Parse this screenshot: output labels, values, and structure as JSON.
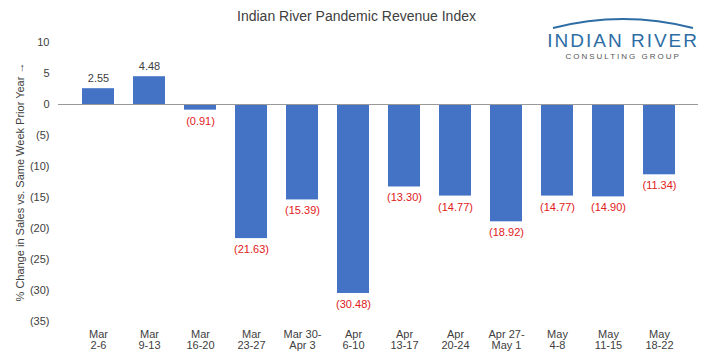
{
  "chart_data": {
    "type": "bar",
    "title": "Indian River Pandemic Revenue Index",
    "y_label": "% Change in Sales vs. Same Week Prior Year",
    "annotations": [
      "INDIAN RIVER",
      "CONSULTING GROUP"
    ],
    "categories": [
      "Mar 2-6",
      "Mar 9-13",
      "Mar 16-20",
      "Mar 23-27",
      "Mar 30-Apr 3",
      "Apr 6-10",
      "Apr 13-17",
      "Apr 20-24",
      "Apr 27-May 1",
      "May 4-8",
      "May 11-15",
      "May 18-22"
    ],
    "values": [
      2.55,
      4.48,
      -0.91,
      -21.63,
      -15.39,
      -30.48,
      -13.3,
      -14.77,
      -18.92,
      -14.77,
      -14.9,
      -11.34
    ],
    "value_labels": [
      "2.55",
      "4.48",
      "(0.91)",
      "(21.63)",
      "(15.39)",
      "(30.48)",
      "(13.30)",
      "(14.77)",
      "(18.92)",
      "(14.77)",
      "(14.90)",
      "(11.34)"
    ],
    "data_labels": true,
    "color": "#4472c4",
    "ylim": [
      -35,
      10
    ],
    "yticks": [
      10,
      5,
      0,
      {
        "value": -5,
        "label": "(5)"
      },
      {
        "value": -10,
        "label": "(10)"
      },
      {
        "value": -15,
        "label": "(15)"
      },
      {
        "value": -20,
        "label": "(20)"
      },
      {
        "value": -25,
        "label": "(25)"
      },
      {
        "value": -30,
        "label": "(30)"
      },
      {
        "value": -35,
        "label": "(35)"
      }
    ],
    "grid": false
  }
}
